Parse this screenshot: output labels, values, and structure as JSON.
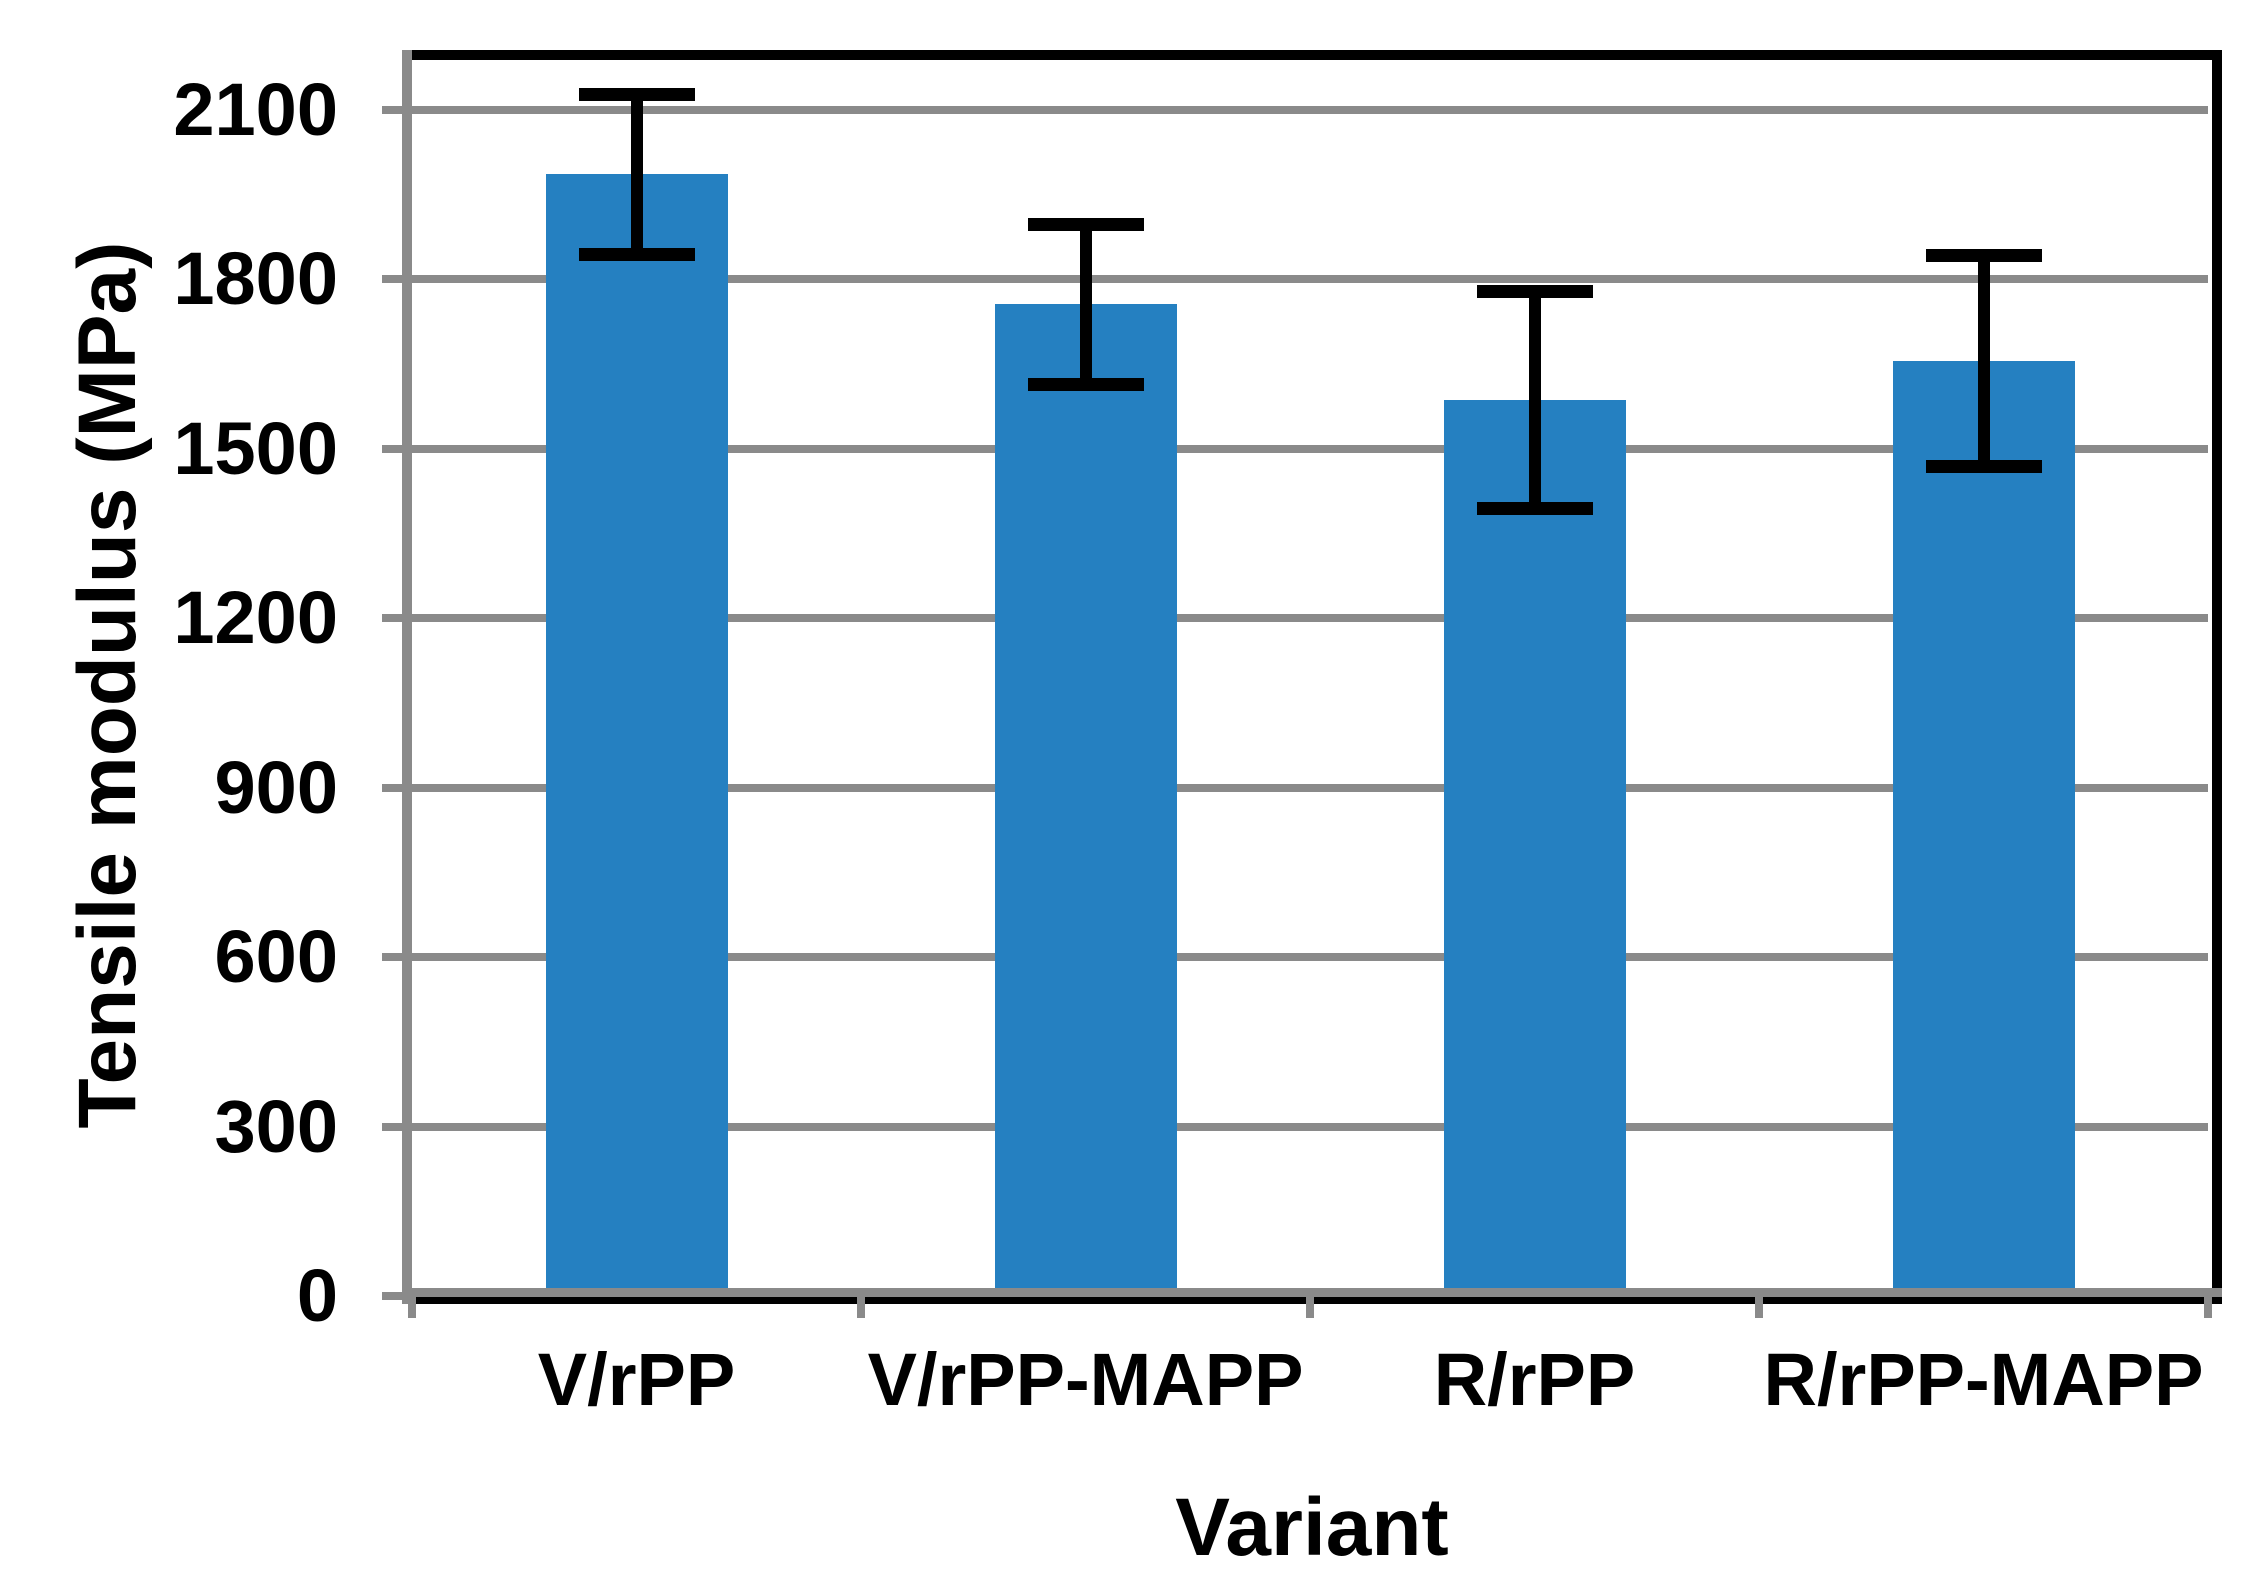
{
  "chart_data": {
    "type": "bar",
    "title": "",
    "xlabel": "Variant",
    "ylabel": "Tensile modulus (MPa)",
    "categories": [
      "V/rPP",
      "V/rPP-MAPP",
      "R/rPP",
      "R/rPP-MAPP"
    ],
    "values": [
      1985,
      1755,
      1585,
      1655
    ],
    "error_bars": [
      150,
      150,
      200,
      195
    ],
    "yticks": [
      0,
      300,
      600,
      900,
      1200,
      1500,
      1800,
      2100
    ],
    "ylim": [
      0,
      2200
    ],
    "grid": true,
    "legend_position": "none",
    "bar_color": "#2580C1",
    "grid_color": "#8A8A8A",
    "axis_color": "#8A8A8A",
    "border_color": "#000000",
    "error_bar_color": "#000000",
    "text_color": "#000000"
  }
}
